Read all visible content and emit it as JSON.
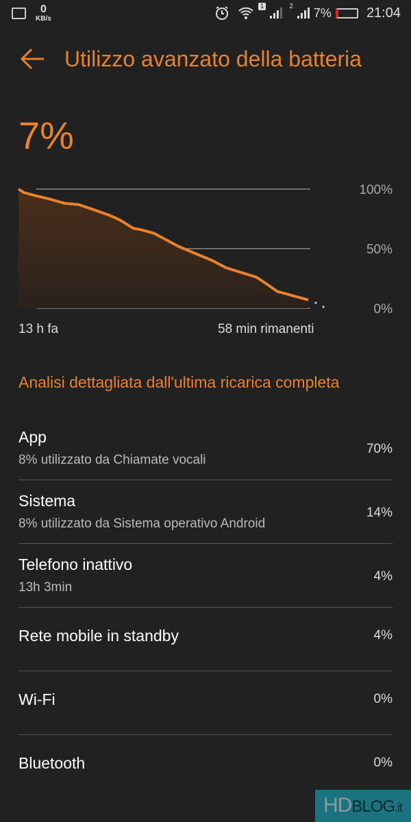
{
  "status_bar": {
    "net_speed": "0",
    "net_unit": "KB/s",
    "sim1": "1",
    "sim2": "2",
    "battery": "7%",
    "time": "21:04",
    "icons": [
      "image-icon",
      "alarm-icon",
      "wifi-icon",
      "signal-icon",
      "battery-icon"
    ]
  },
  "header": {
    "title": "Utilizzo avanzato della batteria"
  },
  "battery_level": "7%",
  "accent": "#e8822e",
  "chart_data": {
    "type": "area",
    "x_unit": "hours",
    "x": [
      -13,
      -12.75,
      -12.14,
      -11.68,
      -10.91,
      -10.3,
      -9.83,
      -8.91,
      -8.45,
      -7.84,
      -7.53,
      -6.93,
      -5.84,
      -5.07,
      -4.3,
      -3.69,
      -2.31,
      -1.84,
      -1.38,
      0
    ],
    "y": [
      100,
      97,
      94,
      92,
      88,
      87,
      84,
      78,
      74,
      67,
      66,
      63,
      52,
      46,
      40,
      34,
      26,
      20,
      14,
      7
    ],
    "y_ticks": [
      "100%",
      "50%",
      "0%"
    ],
    "ylim": [
      0,
      100
    ],
    "x_start_label": "13 h fa",
    "x_end_label": "58 min rimanenti",
    "grid": true
  },
  "section_title": "Analisi dettagliata dall'ultima ricarica completa",
  "items": [
    {
      "title": "App",
      "subtitle": "8% utilizzato da Chiamate vocali",
      "value": "70%"
    },
    {
      "title": "Sistema",
      "subtitle": "8% utilizzato da Sistema operativo Android",
      "value": "14%"
    },
    {
      "title": "Telefono inattivo",
      "subtitle": "13h 3min",
      "value": "4%"
    },
    {
      "title": "Rete mobile in standby",
      "value": "4%"
    },
    {
      "title": "Wi-Fi",
      "value": "0%"
    },
    {
      "title": "Bluetooth",
      "value": "0%"
    }
  ],
  "watermark": {
    "hd": "HD",
    "blog": "BLOG",
    "it": ".it"
  }
}
